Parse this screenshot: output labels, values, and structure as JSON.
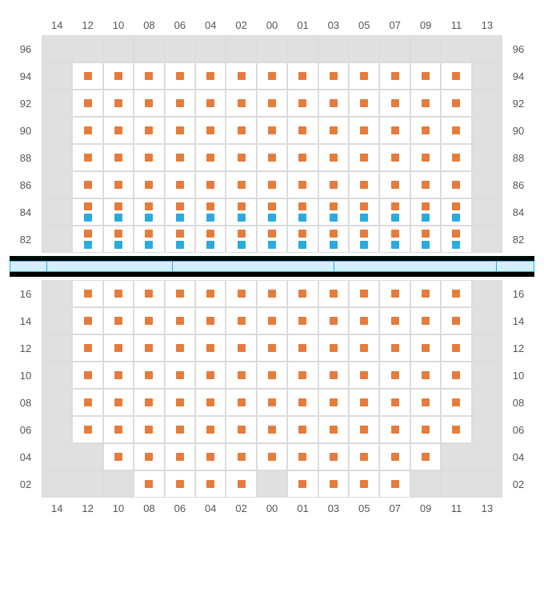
{
  "colors": {
    "seat_orange": "#e67c3c",
    "seat_blue": "#29abe2",
    "cell_bg": "#ffffff",
    "empty_bg": "#e0e0e0",
    "grid_border": "#dcdcdc",
    "label_color": "#555555",
    "divider_bar": "#d4efff",
    "divider_border": "#29abe2",
    "black": "#000000"
  },
  "columns": [
    "14",
    "12",
    "10",
    "08",
    "06",
    "04",
    "02",
    "00",
    "01",
    "03",
    "05",
    "07",
    "09",
    "11",
    "13"
  ],
  "upper": {
    "rows": [
      "96",
      "94",
      "92",
      "90",
      "88",
      "86",
      "84",
      "82"
    ],
    "cells": {
      "96": [
        {
          "t": "e"
        },
        {
          "t": "e"
        },
        {
          "t": "e"
        },
        {
          "t": "e"
        },
        {
          "t": "e"
        },
        {
          "t": "e"
        },
        {
          "t": "e"
        },
        {
          "t": "e"
        },
        {
          "t": "e"
        },
        {
          "t": "e"
        },
        {
          "t": "e"
        },
        {
          "t": "e"
        },
        {
          "t": "e"
        },
        {
          "t": "e"
        },
        {
          "t": "e"
        }
      ],
      "94": [
        {
          "t": "e"
        },
        {
          "d": [
            "o"
          ]
        },
        {
          "d": [
            "o"
          ]
        },
        {
          "d": [
            "o"
          ]
        },
        {
          "d": [
            "o"
          ]
        },
        {
          "d": [
            "o"
          ]
        },
        {
          "d": [
            "o"
          ]
        },
        {
          "d": [
            "o"
          ]
        },
        {
          "d": [
            "o"
          ]
        },
        {
          "d": [
            "o"
          ]
        },
        {
          "d": [
            "o"
          ]
        },
        {
          "d": [
            "o"
          ]
        },
        {
          "d": [
            "o"
          ]
        },
        {
          "d": [
            "o"
          ]
        },
        {
          "t": "e"
        }
      ],
      "92": [
        {
          "t": "e"
        },
        {
          "d": [
            "o"
          ]
        },
        {
          "d": [
            "o"
          ]
        },
        {
          "d": [
            "o"
          ]
        },
        {
          "d": [
            "o"
          ]
        },
        {
          "d": [
            "o"
          ]
        },
        {
          "d": [
            "o"
          ]
        },
        {
          "d": [
            "o"
          ]
        },
        {
          "d": [
            "o"
          ]
        },
        {
          "d": [
            "o"
          ]
        },
        {
          "d": [
            "o"
          ]
        },
        {
          "d": [
            "o"
          ]
        },
        {
          "d": [
            "o"
          ]
        },
        {
          "d": [
            "o"
          ]
        },
        {
          "t": "e"
        }
      ],
      "90": [
        {
          "t": "e"
        },
        {
          "d": [
            "o"
          ]
        },
        {
          "d": [
            "o"
          ]
        },
        {
          "d": [
            "o"
          ]
        },
        {
          "d": [
            "o"
          ]
        },
        {
          "d": [
            "o"
          ]
        },
        {
          "d": [
            "o"
          ]
        },
        {
          "d": [
            "o"
          ]
        },
        {
          "d": [
            "o"
          ]
        },
        {
          "d": [
            "o"
          ]
        },
        {
          "d": [
            "o"
          ]
        },
        {
          "d": [
            "o"
          ]
        },
        {
          "d": [
            "o"
          ]
        },
        {
          "d": [
            "o"
          ]
        },
        {
          "t": "e"
        }
      ],
      "88": [
        {
          "t": "e"
        },
        {
          "d": [
            "o"
          ]
        },
        {
          "d": [
            "o"
          ]
        },
        {
          "d": [
            "o"
          ]
        },
        {
          "d": [
            "o"
          ]
        },
        {
          "d": [
            "o"
          ]
        },
        {
          "d": [
            "o"
          ]
        },
        {
          "d": [
            "o"
          ]
        },
        {
          "d": [
            "o"
          ]
        },
        {
          "d": [
            "o"
          ]
        },
        {
          "d": [
            "o"
          ]
        },
        {
          "d": [
            "o"
          ]
        },
        {
          "d": [
            "o"
          ]
        },
        {
          "d": [
            "o"
          ]
        },
        {
          "t": "e"
        }
      ],
      "86": [
        {
          "t": "e"
        },
        {
          "d": [
            "o"
          ]
        },
        {
          "d": [
            "o"
          ]
        },
        {
          "d": [
            "o"
          ]
        },
        {
          "d": [
            "o"
          ]
        },
        {
          "d": [
            "o"
          ]
        },
        {
          "d": [
            "o"
          ]
        },
        {
          "d": [
            "o"
          ]
        },
        {
          "d": [
            "o"
          ]
        },
        {
          "d": [
            "o"
          ]
        },
        {
          "d": [
            "o"
          ]
        },
        {
          "d": [
            "o"
          ]
        },
        {
          "d": [
            "o"
          ]
        },
        {
          "d": [
            "o"
          ]
        },
        {
          "t": "e"
        }
      ],
      "84": [
        {
          "t": "e"
        },
        {
          "d": [
            "o",
            "b"
          ]
        },
        {
          "d": [
            "o",
            "b"
          ]
        },
        {
          "d": [
            "o",
            "b"
          ]
        },
        {
          "d": [
            "o",
            "b"
          ]
        },
        {
          "d": [
            "o",
            "b"
          ]
        },
        {
          "d": [
            "o",
            "b"
          ]
        },
        {
          "d": [
            "o",
            "b"
          ]
        },
        {
          "d": [
            "o",
            "b"
          ]
        },
        {
          "d": [
            "o",
            "b"
          ]
        },
        {
          "d": [
            "o",
            "b"
          ]
        },
        {
          "d": [
            "o",
            "b"
          ]
        },
        {
          "d": [
            "o",
            "b"
          ]
        },
        {
          "d": [
            "o",
            "b"
          ]
        },
        {
          "t": "e"
        }
      ],
      "82": [
        {
          "t": "e"
        },
        {
          "d": [
            "o",
            "b"
          ]
        },
        {
          "d": [
            "o",
            "b"
          ]
        },
        {
          "d": [
            "o",
            "b"
          ]
        },
        {
          "d": [
            "o",
            "b"
          ]
        },
        {
          "d": [
            "o",
            "b"
          ]
        },
        {
          "d": [
            "o",
            "b"
          ]
        },
        {
          "d": [
            "o",
            "b"
          ]
        },
        {
          "d": [
            "o",
            "b"
          ]
        },
        {
          "d": [
            "o",
            "b"
          ]
        },
        {
          "d": [
            "o",
            "b"
          ]
        },
        {
          "d": [
            "o",
            "b"
          ]
        },
        {
          "d": [
            "o",
            "b"
          ]
        },
        {
          "d": [
            "o",
            "b"
          ]
        },
        {
          "t": "e"
        }
      ]
    }
  },
  "divider": {
    "segments_pct": [
      7,
      24,
      31,
      31,
      7
    ]
  },
  "lower": {
    "rows": [
      "16",
      "14",
      "12",
      "10",
      "08",
      "06",
      "04",
      "02"
    ],
    "cells": {
      "16": [
        {
          "t": "e"
        },
        {
          "d": [
            "o"
          ]
        },
        {
          "d": [
            "o"
          ]
        },
        {
          "d": [
            "o"
          ]
        },
        {
          "d": [
            "o"
          ]
        },
        {
          "d": [
            "o"
          ]
        },
        {
          "d": [
            "o"
          ]
        },
        {
          "d": [
            "o"
          ]
        },
        {
          "d": [
            "o"
          ]
        },
        {
          "d": [
            "o"
          ]
        },
        {
          "d": [
            "o"
          ]
        },
        {
          "d": [
            "o"
          ]
        },
        {
          "d": [
            "o"
          ]
        },
        {
          "d": [
            "o"
          ]
        },
        {
          "t": "e"
        }
      ],
      "14": [
        {
          "t": "e"
        },
        {
          "d": [
            "o"
          ]
        },
        {
          "d": [
            "o"
          ]
        },
        {
          "d": [
            "o"
          ]
        },
        {
          "d": [
            "o"
          ]
        },
        {
          "d": [
            "o"
          ]
        },
        {
          "d": [
            "o"
          ]
        },
        {
          "d": [
            "o"
          ]
        },
        {
          "d": [
            "o"
          ]
        },
        {
          "d": [
            "o"
          ]
        },
        {
          "d": [
            "o"
          ]
        },
        {
          "d": [
            "o"
          ]
        },
        {
          "d": [
            "o"
          ]
        },
        {
          "d": [
            "o"
          ]
        },
        {
          "t": "e"
        }
      ],
      "12": [
        {
          "t": "e"
        },
        {
          "d": [
            "o"
          ]
        },
        {
          "d": [
            "o"
          ]
        },
        {
          "d": [
            "o"
          ]
        },
        {
          "d": [
            "o"
          ]
        },
        {
          "d": [
            "o"
          ]
        },
        {
          "d": [
            "o"
          ]
        },
        {
          "d": [
            "o"
          ]
        },
        {
          "d": [
            "o"
          ]
        },
        {
          "d": [
            "o"
          ]
        },
        {
          "d": [
            "o"
          ]
        },
        {
          "d": [
            "o"
          ]
        },
        {
          "d": [
            "o"
          ]
        },
        {
          "d": [
            "o"
          ]
        },
        {
          "t": "e"
        }
      ],
      "10": [
        {
          "t": "e"
        },
        {
          "d": [
            "o"
          ]
        },
        {
          "d": [
            "o"
          ]
        },
        {
          "d": [
            "o"
          ]
        },
        {
          "d": [
            "o"
          ]
        },
        {
          "d": [
            "o"
          ]
        },
        {
          "d": [
            "o"
          ]
        },
        {
          "d": [
            "o"
          ]
        },
        {
          "d": [
            "o"
          ]
        },
        {
          "d": [
            "o"
          ]
        },
        {
          "d": [
            "o"
          ]
        },
        {
          "d": [
            "o"
          ]
        },
        {
          "d": [
            "o"
          ]
        },
        {
          "d": [
            "o"
          ]
        },
        {
          "t": "e"
        }
      ],
      "08": [
        {
          "t": "e"
        },
        {
          "d": [
            "o"
          ]
        },
        {
          "d": [
            "o"
          ]
        },
        {
          "d": [
            "o"
          ]
        },
        {
          "d": [
            "o"
          ]
        },
        {
          "d": [
            "o"
          ]
        },
        {
          "d": [
            "o"
          ]
        },
        {
          "d": [
            "o"
          ]
        },
        {
          "d": [
            "o"
          ]
        },
        {
          "d": [
            "o"
          ]
        },
        {
          "d": [
            "o"
          ]
        },
        {
          "d": [
            "o"
          ]
        },
        {
          "d": [
            "o"
          ]
        },
        {
          "d": [
            "o"
          ]
        },
        {
          "t": "e"
        }
      ],
      "06": [
        {
          "t": "e"
        },
        {
          "d": [
            "o"
          ]
        },
        {
          "d": [
            "o"
          ]
        },
        {
          "d": [
            "o"
          ]
        },
        {
          "d": [
            "o"
          ]
        },
        {
          "d": [
            "o"
          ]
        },
        {
          "d": [
            "o"
          ]
        },
        {
          "d": [
            "o"
          ]
        },
        {
          "d": [
            "o"
          ]
        },
        {
          "d": [
            "o"
          ]
        },
        {
          "d": [
            "o"
          ]
        },
        {
          "d": [
            "o"
          ]
        },
        {
          "d": [
            "o"
          ]
        },
        {
          "d": [
            "o"
          ]
        },
        {
          "t": "e"
        }
      ],
      "04": [
        {
          "t": "e"
        },
        {
          "t": "e"
        },
        {
          "d": [
            "o"
          ]
        },
        {
          "d": [
            "o"
          ]
        },
        {
          "d": [
            "o"
          ]
        },
        {
          "d": [
            "o"
          ]
        },
        {
          "d": [
            "o"
          ]
        },
        {
          "d": [
            "o"
          ]
        },
        {
          "d": [
            "o"
          ]
        },
        {
          "d": [
            "o"
          ]
        },
        {
          "d": [
            "o"
          ]
        },
        {
          "d": [
            "o"
          ]
        },
        {
          "d": [
            "o"
          ]
        },
        {
          "t": "e"
        },
        {
          "t": "e"
        }
      ],
      "02": [
        {
          "t": "e"
        },
        {
          "t": "e"
        },
        {
          "t": "e"
        },
        {
          "d": [
            "o"
          ]
        },
        {
          "d": [
            "o"
          ]
        },
        {
          "d": [
            "o"
          ]
        },
        {
          "d": [
            "o"
          ]
        },
        {
          "t": "e"
        },
        {
          "d": [
            "o"
          ]
        },
        {
          "d": [
            "o"
          ]
        },
        {
          "d": [
            "o"
          ]
        },
        {
          "d": [
            "o"
          ]
        },
        {
          "t": "e"
        },
        {
          "t": "e"
        },
        {
          "t": "e"
        }
      ]
    }
  }
}
